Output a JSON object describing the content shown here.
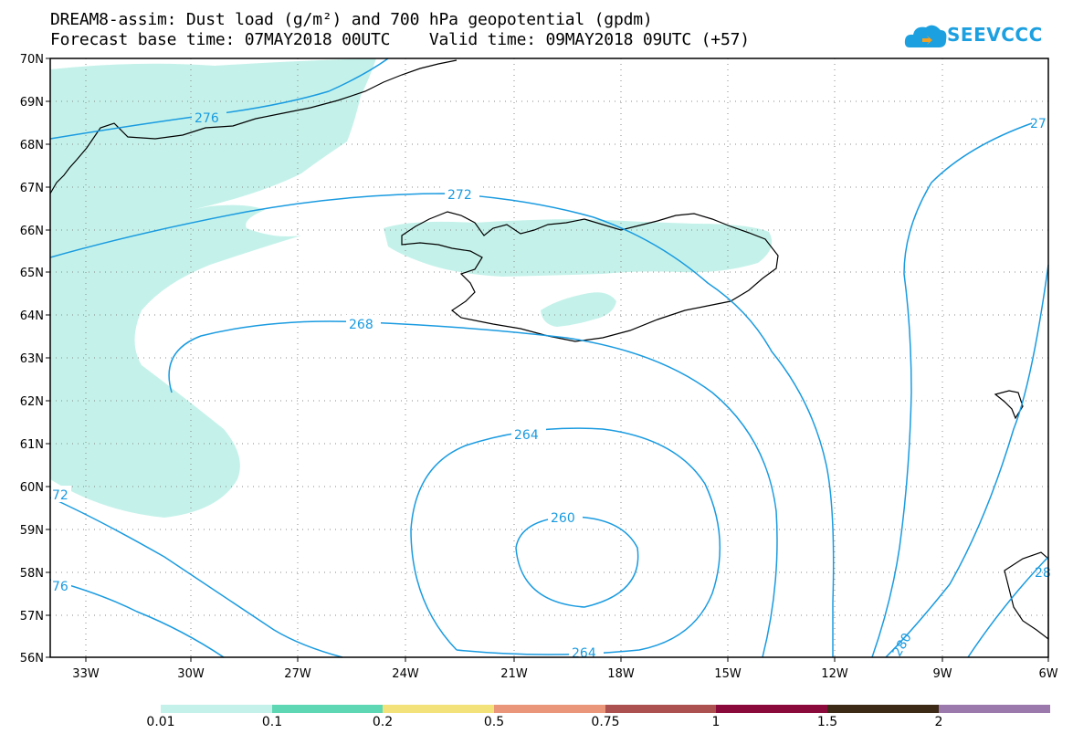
{
  "header": {
    "line1": "DREAM8-assim: Dust load (g/m²) and 700 hPa geopotential (gpdm)",
    "line2": "Forecast base time: 07MAY2018 00UTC    Valid time: 09MAY2018 09UTC (+57)"
  },
  "logo": {
    "text": "SEEVCCC",
    "icon": "cloud-icon",
    "color": "#1da0e0"
  },
  "map": {
    "lat_labels": [
      "70N",
      "69N",
      "68N",
      "67N",
      "66N",
      "65N",
      "64N",
      "63N",
      "62N",
      "61N",
      "60N",
      "59N",
      "58N",
      "57N",
      "56N"
    ],
    "lon_labels": [
      "33W",
      "30W",
      "27W",
      "24W",
      "21W",
      "18W",
      "15W",
      "12W",
      "9W",
      "6W"
    ],
    "contour_color": "#1a9be0",
    "dust_color": "#c4f2ea",
    "contour_labels": [
      "276",
      "272",
      "268",
      "264",
      "260",
      "264",
      "72",
      "76",
      "280",
      "27",
      "28"
    ]
  },
  "colorbar": {
    "colors": [
      "#c4f2ea",
      "#5ed8b4",
      "#f3e27a",
      "#e9967a",
      "#ac5050",
      "#8a0a3c",
      "#3d2a16",
      "#9c79ac"
    ],
    "labels": [
      "0.01",
      "0.1",
      "0.2",
      "0.5",
      "0.75",
      "1",
      "1.5",
      "2"
    ]
  }
}
